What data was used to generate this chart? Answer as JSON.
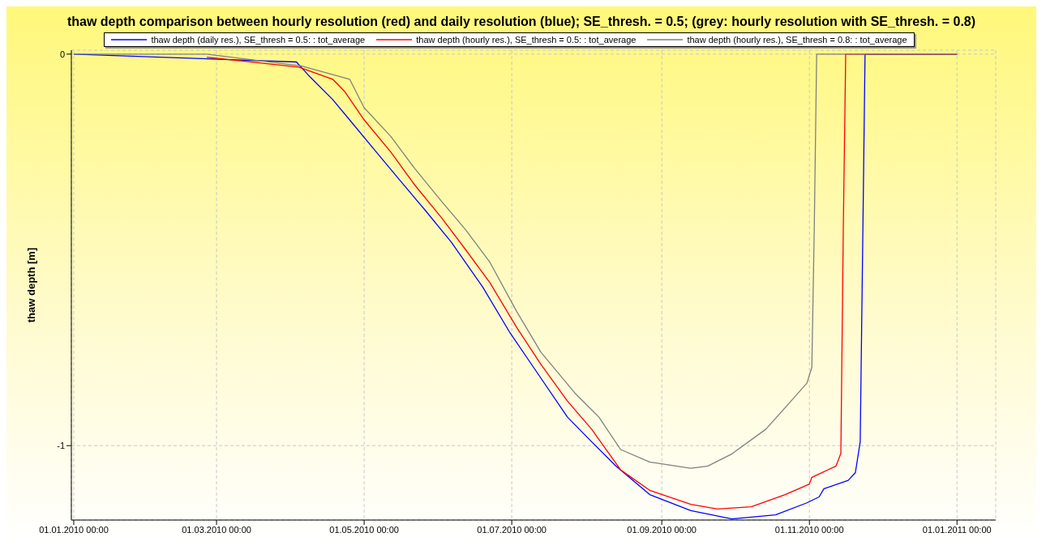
{
  "chart_data": {
    "type": "line",
    "title": "thaw depth comparison between hourly resolution (red) and daily resolution (blue); SE_thresh. = 0.5; (grey: hourly resolution with SE_thresh. = 0.8)",
    "ylabel": "thaw depth [m]",
    "xlim": [
      "2009-12-31",
      "2011-01-17"
    ],
    "ylim": [
      -1.19,
      0.01
    ],
    "xticks": [
      {
        "value": "2010-01-01",
        "label": "01.01.2010 00:00"
      },
      {
        "value": "2010-03-01",
        "label": "01.03.2010 00:00"
      },
      {
        "value": "2010-05-01",
        "label": "01.05.2010 00:00"
      },
      {
        "value": "2010-07-01",
        "label": "01.07.2010 00:00"
      },
      {
        "value": "2010-09-01",
        "label": "01.09.2010 00:00"
      },
      {
        "value": "2010-11-01",
        "label": "01.11.2010 00:00"
      },
      {
        "value": "2011-01-01",
        "label": "01.01.2011 00:00"
      }
    ],
    "yticks": [
      0,
      -1
    ],
    "grid": true,
    "legend": "top",
    "line_style": "solid",
    "marker": "none",
    "series": [
      {
        "name": "thaw depth (daily res.), SE_thresh = 0.5: : tot_average",
        "color": "#0000ff",
        "x": [
          "2010-01-01",
          "2010-04-03",
          "2010-04-08",
          "2010-04-18",
          "2010-04-25",
          "2010-05-06",
          "2010-05-16",
          "2010-05-26",
          "2010-06-06",
          "2010-06-19",
          "2010-06-30",
          "2010-07-10",
          "2010-07-24",
          "2010-08-03",
          "2010-08-13",
          "2010-08-27",
          "2010-09-13",
          "2010-09-30",
          "2010-10-18",
          "2010-10-31",
          "2010-11-05",
          "2010-11-07",
          "2010-11-17",
          "2010-11-20",
          "2010-11-22",
          "2010-11-23",
          "2010-11-24",
          "2011-01-01"
        ],
        "values": [
          0,
          -0.02,
          -0.054,
          -0.116,
          -0.168,
          -0.25,
          -0.324,
          -0.397,
          -0.48,
          -0.595,
          -0.709,
          -0.8,
          -0.927,
          -0.99,
          -1.052,
          -1.125,
          -1.166,
          -1.187,
          -1.177,
          -1.146,
          -1.131,
          -1.11,
          -1.089,
          -1.069,
          -0.99,
          -0.5,
          0,
          0
        ]
      },
      {
        "name": "thaw depth (hourly res.), SE_thresh = 0.5: : tot_average",
        "color": "#ff0000",
        "x": [
          "2010-02-25",
          "2010-04-04",
          "2010-04-18",
          "2010-04-23",
          "2010-05-01",
          "2010-05-12",
          "2010-05-22",
          "2010-06-02",
          "2010-06-12",
          "2010-06-22",
          "2010-07-03",
          "2010-07-13",
          "2010-07-24",
          "2010-08-03",
          "2010-08-15",
          "2010-08-27",
          "2010-09-13",
          "2010-09-24",
          "2010-10-08",
          "2010-10-22",
          "2010-11-01",
          "2010-11-02",
          "2010-11-12",
          "2010-11-14",
          "2010-11-15",
          "2010-11-16",
          "2011-01-01"
        ],
        "values": [
          -0.008,
          -0.033,
          -0.064,
          -0.096,
          -0.168,
          -0.25,
          -0.335,
          -0.418,
          -0.5,
          -0.584,
          -0.698,
          -0.792,
          -0.886,
          -0.958,
          -1.062,
          -1.114,
          -1.15,
          -1.162,
          -1.156,
          -1.125,
          -1.098,
          -1.081,
          -1.052,
          -1.02,
          -0.45,
          0,
          0
        ]
      },
      {
        "name": "thaw depth (hourly res.), SE_thresh = 0.8: : tot_average",
        "color": "#808080",
        "x": [
          "2010-01-01",
          "2010-02-25",
          "2010-04-05",
          "2010-04-25",
          "2010-05-01",
          "2010-05-12",
          "2010-05-22",
          "2010-06-02",
          "2010-06-12",
          "2010-06-22",
          "2010-07-03",
          "2010-07-13",
          "2010-07-27",
          "2010-08-06",
          "2010-08-15",
          "2010-08-27",
          "2010-09-13",
          "2010-09-20",
          "2010-09-30",
          "2010-10-14",
          "2010-10-23",
          "2010-10-31",
          "2010-11-02",
          "2010-11-03",
          "2010-11-04",
          "2011-01-01"
        ],
        "values": [
          0,
          0,
          -0.03,
          -0.064,
          -0.137,
          -0.21,
          -0.293,
          -0.376,
          -0.449,
          -0.532,
          -0.657,
          -0.761,
          -0.865,
          -0.927,
          -1.01,
          -1.042,
          -1.058,
          -1.052,
          -1.021,
          -0.958,
          -0.896,
          -0.84,
          -0.8,
          -0.45,
          0,
          0
        ]
      }
    ]
  }
}
